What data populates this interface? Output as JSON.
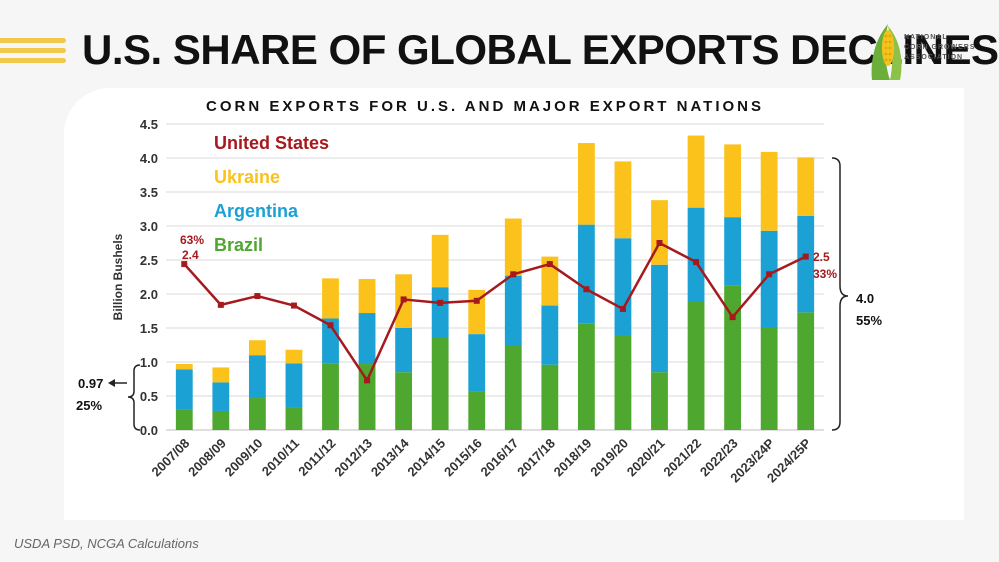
{
  "slide": {
    "title": "U.S. SHARE OF GLOBAL EXPORTS DECLINES",
    "source": "USDA PSD, NCGA Calculations",
    "logo": {
      "lines": [
        "NATIONAL",
        "CORN GROWERS",
        "ASSOCIATION"
      ]
    },
    "stripe_color": "#f2c84b"
  },
  "chart_data": {
    "type": "bar",
    "stacked": true,
    "title": "CORN EXPORTS FOR U.S. AND MAJOR EXPORT NATIONS",
    "ylabel": "Billion Bushels",
    "xlabel": "",
    "ylim": [
      0,
      4.5
    ],
    "yticks": [
      "0.0",
      "0.5",
      "1.0",
      "1.5",
      "2.0",
      "2.5",
      "3.0",
      "3.5",
      "4.0",
      "4.5"
    ],
    "grid": true,
    "legend_position": "top-left",
    "categories": [
      "2007/08",
      "2008/09",
      "2009/10",
      "2010/11",
      "2011/12",
      "2012/13",
      "2013/14",
      "2014/15",
      "2015/16",
      "2016/17",
      "2017/18",
      "2018/19",
      "2019/20",
      "2020/21",
      "2021/22",
      "2022/23",
      "2023/24P",
      "2024/25P"
    ],
    "series": [
      {
        "name": "Brazil",
        "color": "#4ea72e",
        "values": [
          0.3,
          0.28,
          0.47,
          0.33,
          0.98,
          0.97,
          0.85,
          1.36,
          0.56,
          1.25,
          0.96,
          1.57,
          1.39,
          0.85,
          1.89,
          2.13,
          1.5,
          1.73
        ]
      },
      {
        "name": "Argentina",
        "color": "#1ba1d3",
        "values": [
          0.59,
          0.42,
          0.63,
          0.65,
          0.66,
          0.75,
          0.65,
          0.74,
          0.85,
          1.02,
          0.87,
          1.45,
          1.43,
          1.58,
          1.38,
          1.0,
          1.43,
          1.42
        ]
      },
      {
        "name": "Ukraine",
        "color": "#fbc21c",
        "values": [
          0.08,
          0.22,
          0.22,
          0.2,
          0.59,
          0.5,
          0.79,
          0.77,
          0.65,
          0.84,
          0.72,
          1.2,
          1.13,
          0.95,
          1.06,
          1.07,
          1.16,
          0.86
        ]
      },
      {
        "name": "United States",
        "color": "#a6191d",
        "type": "line",
        "values": [
          2.44,
          1.84,
          1.97,
          1.83,
          1.54,
          0.73,
          1.92,
          1.87,
          1.9,
          2.29,
          2.44,
          2.07,
          1.78,
          2.75,
          2.47,
          1.66,
          2.29,
          2.55
        ]
      }
    ],
    "annotations": {
      "us_start": {
        "share": "63%",
        "value": "2.4"
      },
      "us_end": {
        "value": "2.5",
        "share": "33%"
      },
      "competitors_start": {
        "value": "0.97",
        "share": "25%"
      },
      "competitors_end": {
        "value": "4.0",
        "share": "55%"
      }
    }
  }
}
